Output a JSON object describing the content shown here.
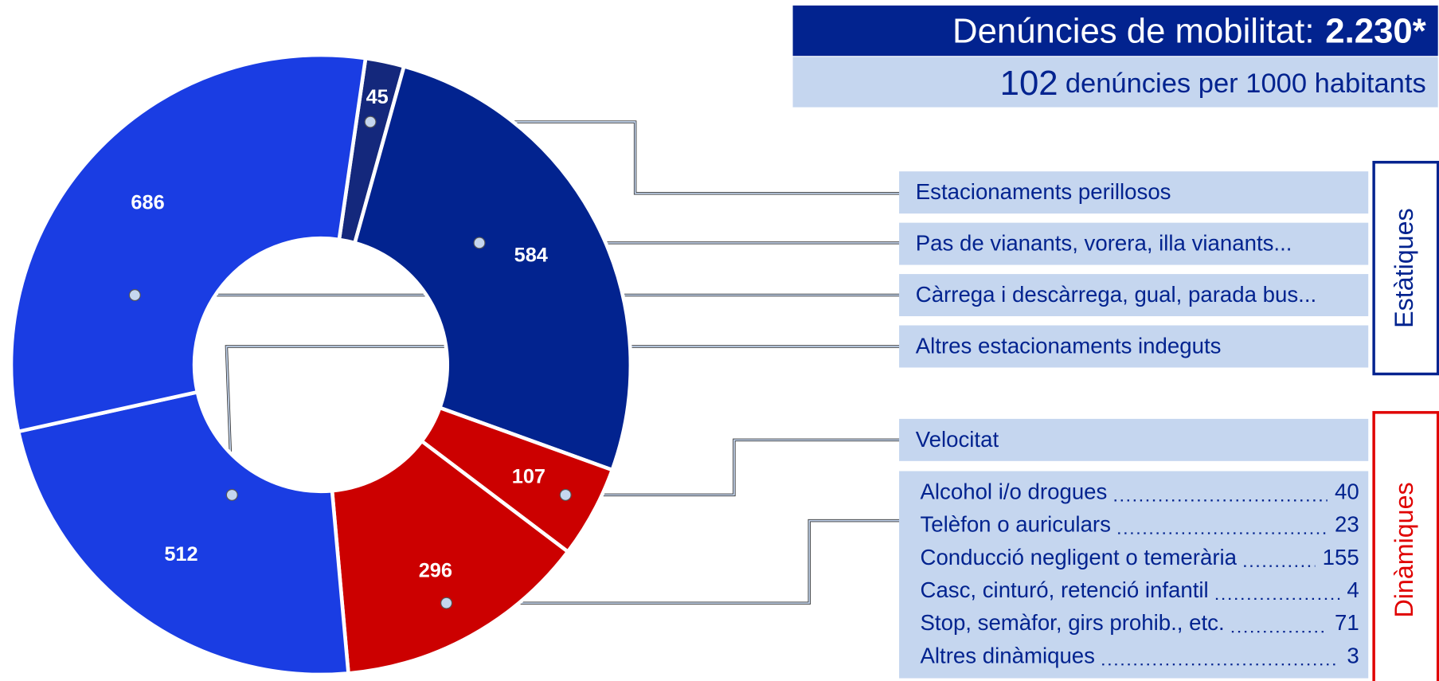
{
  "chart_data": {
    "type": "donut",
    "title": "Denúncies de mobilitat:",
    "total": "2.230*",
    "rate": "102",
    "rate_text": "denúncies per 1000 habitants",
    "categories": [
      "Estacionaments perillosos",
      "Pas de vianants, vorera, illa vianants...",
      "Velocitat",
      null,
      "Altres estacionaments indeguts",
      "Càrrega i descàrrega, gual, parada bus..."
    ],
    "values": [
      45,
      584,
      107,
      296,
      512,
      686
    ],
    "colors": [
      "#14287c",
      "#02238f",
      "#cc0000",
      "#cc0000",
      "#1a3de3",
      "#1a3de3"
    ],
    "groups": [
      "Estàtiques",
      "Dinàmiques"
    ],
    "group_colors": [
      "#02238f",
      "#e00000"
    ],
    "breakdown": [
      {
        "label": "Alcohol i/o drogues",
        "value": 40
      },
      {
        "label": "Telèfon o auriculars",
        "value": 23
      },
      {
        "label": "Conducció negligent o temerària",
        "value": 155
      },
      {
        "label": "Casc, cinturó, retenció infantil",
        "value": 4
      },
      {
        "label": "Stop, semàfor, girs prohib.,  etc.",
        "value": 71
      },
      {
        "label": "Altres dinàmiques",
        "value": 3
      }
    ]
  }
}
